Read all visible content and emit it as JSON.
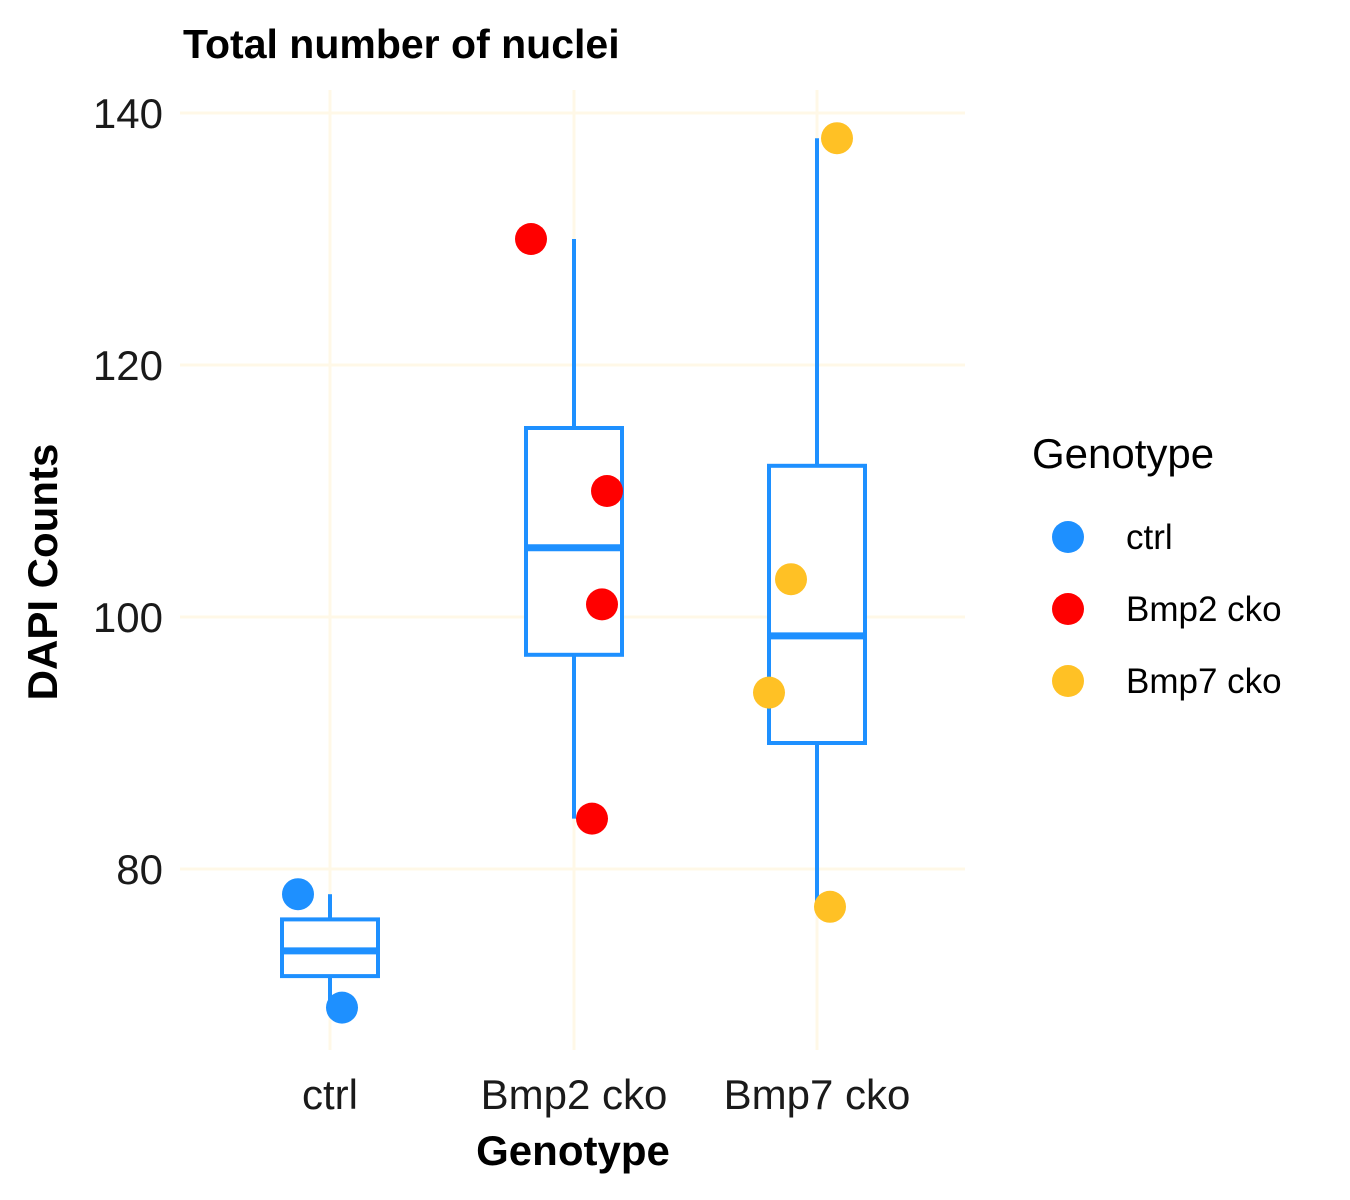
{
  "chart_data": {
    "type": "box",
    "title": "Total number of nuclei",
    "xlabel": "Genotype",
    "ylabel": "DAPI Counts",
    "categories": [
      "ctrl",
      "Bmp2 cko",
      "Bmp7 cko"
    ],
    "ylim": [
      66,
      142
    ],
    "yticks": [
      80,
      100,
      120,
      140
    ],
    "grid": true,
    "colors": {
      "box": "#1E90FF",
      "grid": "#FFF8E7",
      "ctrl": "#1E90FF",
      "Bmp2 cko": "#FF0000",
      "Bmp7 cko": "#FFC125"
    },
    "boxes": [
      {
        "category": "ctrl",
        "whisker_low": 69,
        "q1": 71.5,
        "median": 73.5,
        "q3": 76,
        "whisker_high": 78
      },
      {
        "category": "Bmp2 cko",
        "whisker_low": 84,
        "q1": 97,
        "median": 105.5,
        "q3": 115,
        "whisker_high": 130
      },
      {
        "category": "Bmp7 cko",
        "whisker_low": 77,
        "q1": 90,
        "median": 98.5,
        "q3": 112,
        "whisker_high": 138
      }
    ],
    "points": [
      {
        "category": "ctrl",
        "y": 78
      },
      {
        "category": "ctrl",
        "y": 69
      },
      {
        "category": "Bmp2 cko",
        "y": 130
      },
      {
        "category": "Bmp2 cko",
        "y": 110
      },
      {
        "category": "Bmp2 cko",
        "y": 101
      },
      {
        "category": "Bmp2 cko",
        "y": 84
      },
      {
        "category": "Bmp7 cko",
        "y": 138
      },
      {
        "category": "Bmp7 cko",
        "y": 103
      },
      {
        "category": "Bmp7 cko",
        "y": 94
      },
      {
        "category": "Bmp7 cko",
        "y": 77
      }
    ],
    "legend": {
      "title": "Genotype",
      "position": "right",
      "items": [
        "ctrl",
        "Bmp2 cko",
        "Bmp7 cko"
      ]
    }
  }
}
